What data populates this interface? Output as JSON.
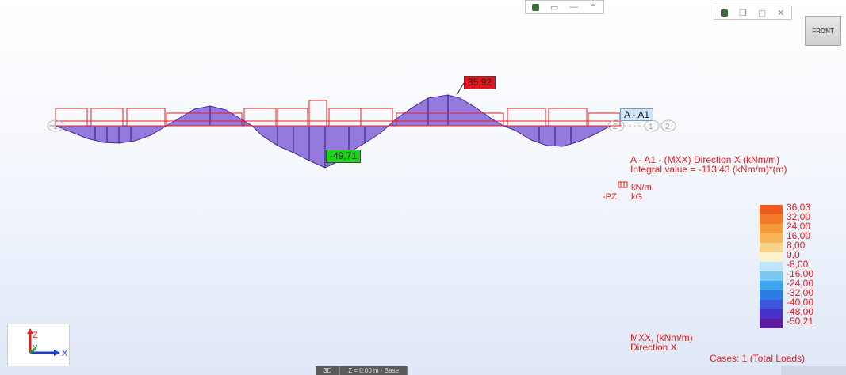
{
  "view": {
    "front_button": "FRONT"
  },
  "diagram": {
    "section_label": "A - A1",
    "max_label": "35,92",
    "min_label": "-49,71",
    "node_labels": {
      "left": "1",
      "right_a": "2",
      "right_b": "1",
      "right_c": "2"
    }
  },
  "info": {
    "title": "A - A1 - (MXX) Direction X (kNm/m)",
    "integral": "Integral value = -113,43 (kNm/m)*(m)"
  },
  "units": {
    "load": "kN/m",
    "pz_prefix": "-PZ",
    "force": "kG"
  },
  "scale": {
    "values": [
      "36,03",
      "32,00",
      "24,00",
      "16,00",
      "8,00",
      "0,0",
      "-8,00",
      "-16,00",
      "-24,00",
      "-32,00",
      "-40,00",
      "-48,00",
      "-50,21"
    ],
    "colors": [
      "#f05a1c",
      "#f57a2c",
      "#f79a3a",
      "#f8b458",
      "#f9d58c",
      "#fbf1cc",
      "#bfe5fa",
      "#7cc6f3",
      "#3ea4ec",
      "#2b7de5",
      "#3a55dc",
      "#4930c9",
      "#5c1da3"
    ]
  },
  "legend": {
    "component": "MXX, (kNm/m)",
    "direction": "Direction X",
    "cases": "Cases: 1 (Total Loads)"
  },
  "axes": {
    "z": "Z",
    "y": "Y",
    "x": "X"
  },
  "statusbar": {
    "view_mode": "3D",
    "level": "Z = 0,00 m - Base"
  },
  "colors": {
    "moment_fill": "#8a6ad8",
    "load_line": "#e62020",
    "accent_red": "#ef1a1a"
  }
}
